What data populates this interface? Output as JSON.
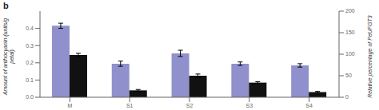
{
  "chart_data": {
    "type": "bar",
    "title": "b",
    "categories": [
      "M",
      "S1",
      "S2",
      "S3",
      "S4"
    ],
    "series": [
      {
        "color": "#9090cc",
        "values": [
          0.415,
          0.195,
          0.255,
          0.195,
          0.185
        ],
        "errors": [
          0.015,
          0.015,
          0.018,
          0.01,
          0.01
        ]
      },
      {
        "color": "#111111",
        "values": [
          0.245,
          0.04,
          0.125,
          0.085,
          0.03
        ],
        "errors": [
          0.01,
          0.005,
          0.01,
          0.005,
          0.004
        ]
      }
    ],
    "ylabel": "Amount of anthocyanin (units/g petal)",
    "y2label": "Relative percentage of PeUFGT3",
    "ylim": [
      0.0,
      0.5
    ],
    "yticks": [
      {
        "value": 0.0,
        "label": "0.0"
      },
      0.1,
      0.2,
      0.3,
      0.4
    ],
    "y2lim": [
      0,
      200
    ],
    "y2ticks": [
      0,
      50,
      100,
      150,
      200
    ]
  }
}
